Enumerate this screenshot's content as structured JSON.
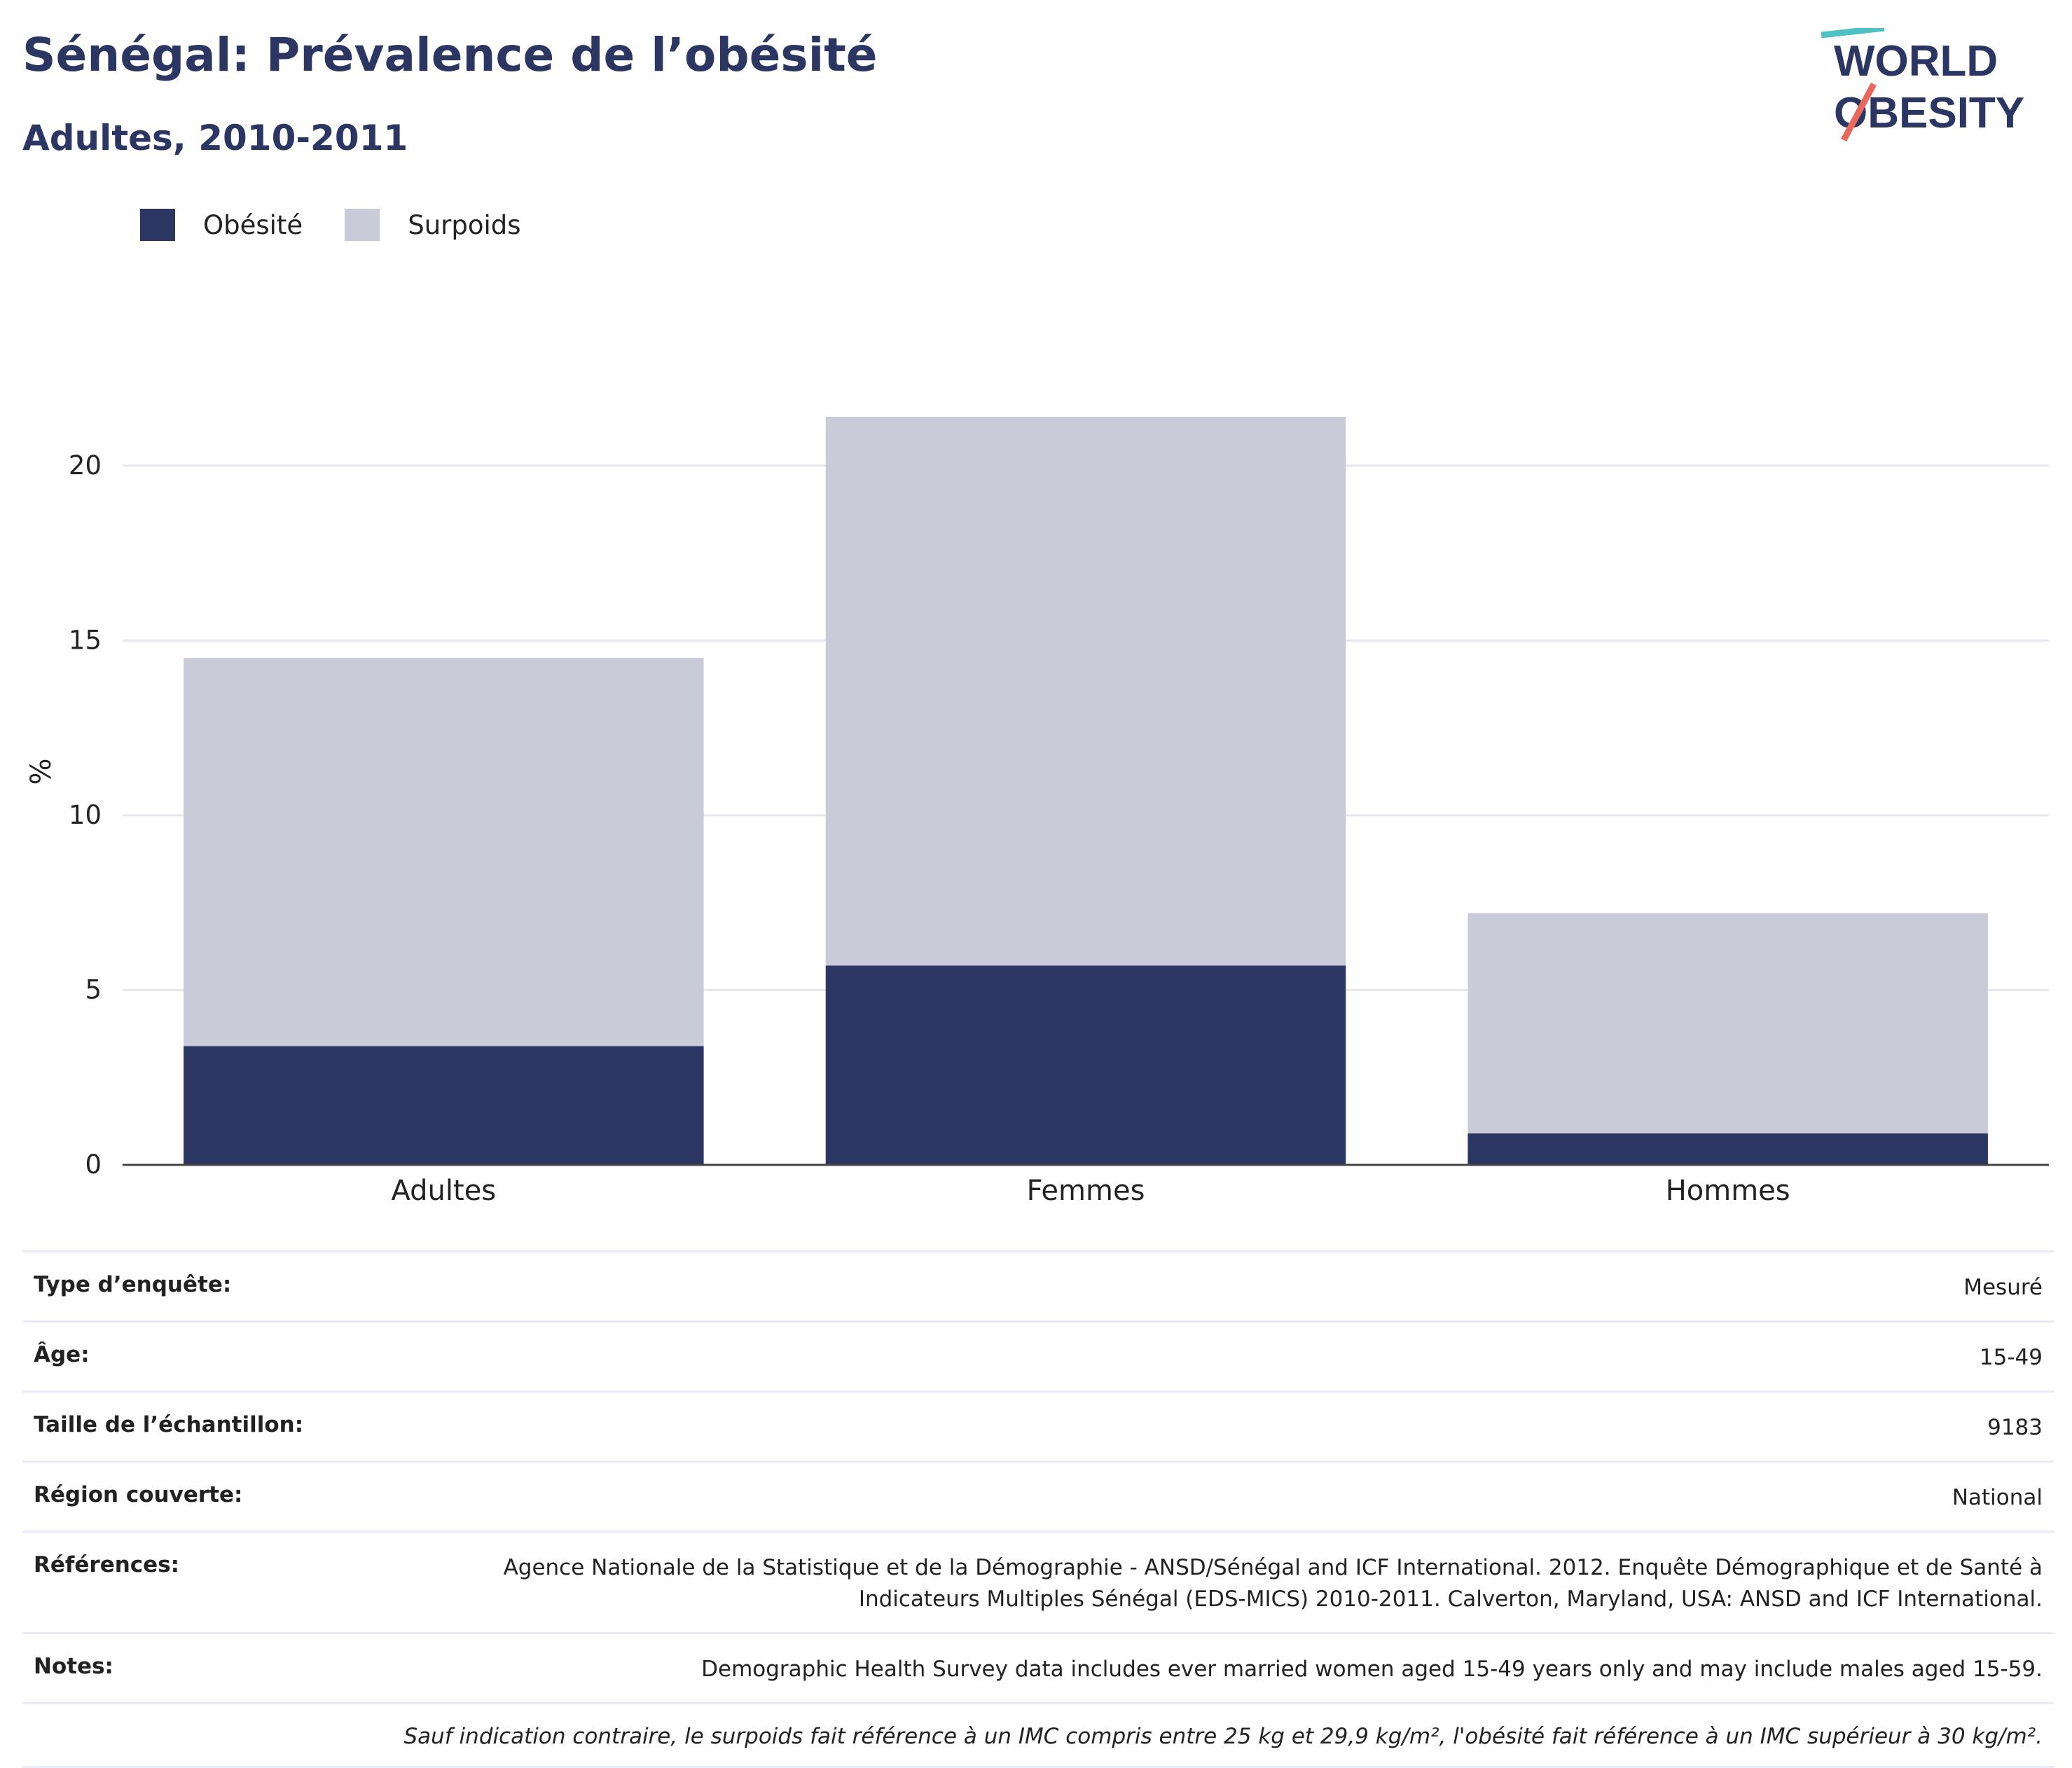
{
  "header": {
    "title": "Sénégal: Prévalence de l’obésité",
    "subtitle": "Adultes, 2010-2011"
  },
  "logo": {
    "line1": "WORLD",
    "line2": "OBESITY"
  },
  "legend": [
    {
      "label": "Obésité",
      "color": "#2b3663"
    },
    {
      "label": "Surpoids",
      "color": "#c9ccd8"
    }
  ],
  "chart_data": {
    "type": "bar",
    "stacked": true,
    "categories": [
      "Adultes",
      "Femmes",
      "Hommes"
    ],
    "series": [
      {
        "name": "Obésité",
        "values": [
          3.4,
          5.7,
          0.9
        ],
        "color": "#2b3663"
      },
      {
        "name": "Surpoids",
        "values": [
          11.1,
          15.7,
          6.3
        ],
        "color": "#c9ccd8"
      }
    ],
    "ylabel": "%",
    "ylim": [
      0,
      22.5
    ],
    "yticks": [
      0,
      5,
      10,
      15,
      20
    ],
    "grid": true
  },
  "meta": {
    "rows": [
      {
        "key": "Type d’enquête:",
        "value": "Mesuré"
      },
      {
        "key": "Âge:",
        "value": "15-49"
      },
      {
        "key": "Taille de l’échantillon:",
        "value": "9183"
      },
      {
        "key": "Région couverte:",
        "value": "National"
      },
      {
        "key": "Références:",
        "value": "Agence Nationale de la Statistique et de la Démographie - ANSD/Sénégal and ICF International. 2012. Enquête Démographique et de Santé à Indicateurs Multiples Sénégal (EDS-MICS) 2010-2011. Calverton, Maryland, USA: ANSD and ICF International."
      },
      {
        "key": "Notes:",
        "value": "Demographic Health Survey data includes ever married women aged 15-49 years only and may include males aged 15-59."
      }
    ],
    "footnote": "Sauf indication contraire, le surpoids fait référence à un IMC compris entre 25 kg et 29,9 kg/m², l'obésité fait référence à un IMC supérieur à 30 kg/m²."
  }
}
